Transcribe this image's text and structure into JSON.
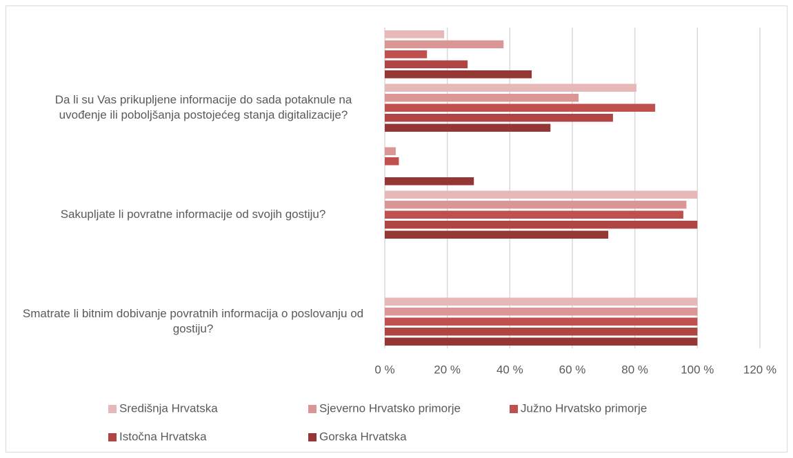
{
  "chart_data": {
    "type": "bar",
    "orientation": "horizontal",
    "categories": [
      "Smatrate li bitnim dobivanje povratnih informacija o poslovanju od gostiju?",
      null,
      "Sakupljate li povratne informacije od svojih gostiju?",
      null,
      "Da li su Vas prikupljene informacije do sada potaknule na uvođenje ili poboljšanja postojećeg stanja digitalizacije?",
      null
    ],
    "series": [
      {
        "name": "Središnja Hrvatska",
        "color": "#e6b9b8",
        "values": [
          100,
          0,
          100,
          0,
          80.5,
          19
        ]
      },
      {
        "name": "Sjeverno Hrvatsko primorje",
        "color": "#d99694",
        "values": [
          100,
          0,
          96.5,
          3.5,
          62,
          38
        ]
      },
      {
        "name": "Južno Hrvatsko primorje",
        "color": "#c0504d",
        "values": [
          100,
          0,
          95.5,
          4.5,
          86.5,
          13.5
        ]
      },
      {
        "name": "Istočna Hrvatska",
        "color": "#ae4542",
        "values": [
          100,
          0,
          100,
          0,
          73,
          26.5
        ]
      },
      {
        "name": "Gorska Hrvatska",
        "color": "#943634",
        "values": [
          100,
          0,
          71.5,
          28.5,
          53,
          47
        ]
      }
    ],
    "xlim": [
      0,
      120
    ],
    "xticks": [
      {
        "value": 0,
        "label": "0 %"
      },
      {
        "value": 20,
        "label": "20 %"
      },
      {
        "value": 40,
        "label": "40 %"
      },
      {
        "value": 60,
        "label": "60 %"
      },
      {
        "value": 80,
        "label": "80 %"
      },
      {
        "value": 100,
        "label": "100 %"
      },
      {
        "value": 120,
        "label": "120 %"
      }
    ],
    "grid": true,
    "legend": "bottom"
  }
}
